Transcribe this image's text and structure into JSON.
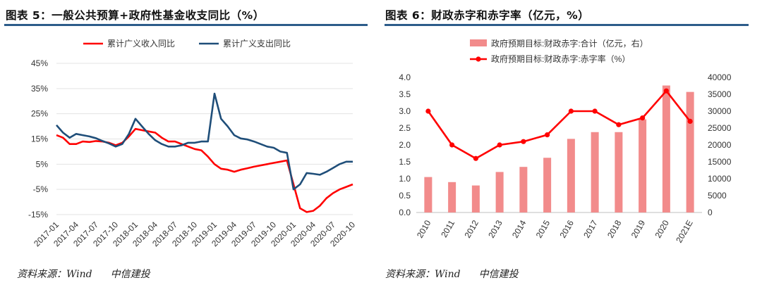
{
  "charts": [
    {
      "panel": "left",
      "title": "图表 5：一般公共预算+政府性基金收支同比（%）",
      "source_label": "资料来源：Wind",
      "source_org": "中信建投",
      "chart_data": {
        "type": "line",
        "x": [
          "2017-01",
          "2017-02",
          "2017-03",
          "2017-04",
          "2017-05",
          "2017-06",
          "2017-07",
          "2017-08",
          "2017-09",
          "2017-10",
          "2017-11",
          "2017-12",
          "2018-01",
          "2018-02",
          "2018-03",
          "2018-04",
          "2018-05",
          "2018-06",
          "2018-07",
          "2018-08",
          "2018-09",
          "2018-10",
          "2018-11",
          "2018-12",
          "2019-01",
          "2019-02",
          "2019-03",
          "2019-04",
          "2019-05",
          "2019-06",
          "2019-07",
          "2019-08",
          "2019-09",
          "2019-10",
          "2019-11",
          "2019-12",
          "2020-01",
          "2020-02",
          "2020-03",
          "2020-04",
          "2020-05",
          "2020-06",
          "2020-07",
          "2020-08",
          "2020-09",
          "2020-10"
        ],
        "xtick_labels": [
          "2017-01",
          "2017-04",
          "2017-07",
          "2017-10",
          "2018-01",
          "2018-04",
          "2018-07",
          "2018-10",
          "2019-01",
          "2019-04",
          "2019-07",
          "2019-10",
          "2020-01",
          "2020-04",
          "2020-07",
          "2020-10"
        ],
        "ylim": [
          -15,
          45
        ],
        "yticks": [
          -15,
          -5,
          5,
          15,
          25,
          35,
          45
        ],
        "ytick_labels": [
          "-15%",
          "-5%",
          "5%",
          "15%",
          "25%",
          "35%",
          "45%"
        ],
        "legend_position": "top",
        "series": [
          {
            "name": "累计广义收入同比",
            "color": "#ff0000",
            "values": [
              16.5,
              15.5,
              13,
              13,
              14,
              13.8,
              14.2,
              14,
              13.5,
              12.5,
              13.5,
              16,
              19,
              18.5,
              18,
              17.5,
              15.5,
              14,
              14,
              13,
              12,
              11,
              10.5,
              8,
              5,
              3.2,
              2.8,
              2,
              2.8,
              3.4,
              4,
              4.5,
              5,
              5.5,
              6,
              6.5,
              -3,
              -12.5,
              -14,
              -13.5,
              -11.5,
              -8.5,
              -6.5,
              -5,
              -4,
              -3
            ]
          },
          {
            "name": "累计广义支出同比",
            "color": "#1f4e79",
            "values": [
              20.5,
              17.5,
              15.5,
              17,
              16.5,
              16,
              15.3,
              14.2,
              13.2,
              12,
              13,
              17,
              23,
              20,
              17,
              14.5,
              13,
              12,
              12,
              12.5,
              13.5,
              13.5,
              14,
              14,
              33,
              23,
              20,
              16.5,
              15.2,
              14.8,
              14,
              13,
              12,
              11.5,
              10,
              9.5,
              -5,
              -3,
              1.5,
              1.2,
              0.8,
              2,
              3.5,
              5,
              6,
              6
            ]
          }
        ]
      }
    },
    {
      "panel": "right",
      "title": "图表 6：财政赤字和赤字率（亿元，%）",
      "source_label": "资料来源：Wind",
      "source_org": "中信建投",
      "chart_data": {
        "type": "bar",
        "categories": [
          "2010",
          "2011",
          "2012",
          "2013",
          "2014",
          "2015",
          "2016",
          "2017",
          "2018",
          "2019",
          "2020",
          "2021E"
        ],
        "ylim_left": [
          0,
          4.0
        ],
        "yticks_left": [
          0.0,
          0.5,
          1.0,
          1.5,
          2.0,
          2.5,
          3.0,
          3.5,
          4.0
        ],
        "ytick_labels_left": [
          "0.0",
          "0.5",
          "1.0",
          "1.5",
          "2.0",
          "2.5",
          "3.0",
          "3.5",
          "4.0"
        ],
        "ylim_right": [
          0,
          40000
        ],
        "yticks_right": [
          0,
          5000,
          10000,
          15000,
          20000,
          25000,
          30000,
          35000,
          40000
        ],
        "ytick_labels_right": [
          "0",
          "5000",
          "10000",
          "15000",
          "20000",
          "25000",
          "30000",
          "35000",
          "40000"
        ],
        "legend_position": "top",
        "series": [
          {
            "name": "政府预期目标:财政赤字:合计（亿元，右）",
            "type": "bar",
            "axis": "right",
            "color": "#f28b8b",
            "values": [
              10500,
              9000,
              8000,
              12000,
              13500,
              16200,
              21800,
              23800,
              23800,
              27600,
              37600,
              35700
            ]
          },
          {
            "name": "政府预期目标:财政赤字:赤字率（%）",
            "type": "line",
            "axis": "left",
            "color": "#ff0000",
            "values": [
              3.0,
              2.0,
              1.6,
              2.0,
              2.1,
              2.3,
              3.0,
              3.0,
              2.6,
              2.8,
              3.6,
              2.7
            ]
          }
        ]
      }
    }
  ]
}
